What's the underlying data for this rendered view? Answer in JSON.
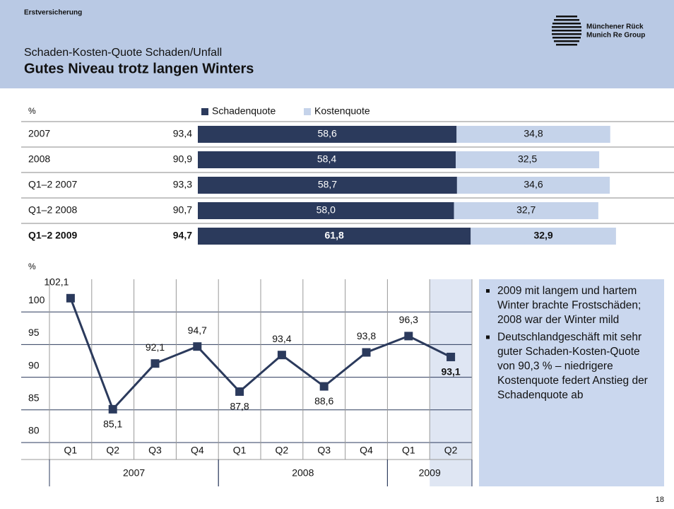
{
  "header": {
    "section": "Erstversicherung",
    "subtitle": "Schaden-Kosten-Quote Schaden/Unfall",
    "title": "Gutes Niveau trotz langen Winters",
    "logo": [
      "Münchener Rück",
      "Munich Re Group"
    ]
  },
  "chart_data": [
    {
      "type": "stacked-bar-table",
      "unit": "%",
      "categories": [
        "2007",
        "2008",
        "Q1–2 2007",
        "Q1–2 2008",
        "Q1–2 2009"
      ],
      "totals": [
        93.4,
        90.9,
        93.3,
        90.7,
        94.7
      ],
      "total_labels": [
        "93,4",
        "90,9",
        "93,3",
        "90,7",
        "94,7"
      ],
      "highlight": 4,
      "xlim": [
        0,
        100
      ],
      "series": [
        {
          "name": "Schadenquote",
          "color": "#2b3a5c",
          "values": [
            58.6,
            58.4,
            58.7,
            58.0,
            61.8
          ],
          "value_labels": [
            "58,6",
            "58,4",
            "58,7",
            "58,0",
            "61,8"
          ]
        },
        {
          "name": "Kostenquote",
          "color": "#c5d3ea",
          "values": [
            34.8,
            32.5,
            34.6,
            32.7,
            32.9
          ],
          "value_labels": [
            "34,8",
            "32,5",
            "34,6",
            "32,7",
            "32,9"
          ]
        }
      ]
    },
    {
      "type": "line",
      "unit": "%",
      "categories": [
        "Q1",
        "Q2",
        "Q3",
        "Q4",
        "Q1",
        "Q2",
        "Q3",
        "Q4",
        "Q1",
        "Q2"
      ],
      "groups": [
        {
          "label": "2007",
          "span": 4
        },
        {
          "label": "2008",
          "span": 4
        },
        {
          "label": "2009",
          "span": 2
        }
      ],
      "values": [
        102.1,
        85.1,
        92.1,
        94.7,
        87.8,
        93.4,
        88.6,
        93.8,
        96.3,
        93.1
      ],
      "value_labels": [
        "102,1",
        "85,1",
        "92,1",
        "94,7",
        "87,8",
        "93,4",
        "88,6",
        "93,8",
        "96,3",
        "93,1"
      ],
      "highlight": 9,
      "color": "#2b3a5c",
      "ylim": [
        80,
        105
      ],
      "yticks": [
        80,
        85,
        90,
        95,
        100
      ],
      "grid": true
    }
  ],
  "notes": [
    "2009 mit langem und hartem Winter brachte Frostschäden; 2008 war der Winter mild",
    "Deutschlandgeschäft mit sehr guter Schaden-Kosten-Quote von 90,3 % – niedrigere Kostenquote federt Anstieg der Schadenquote ab"
  ],
  "page_number": "18"
}
